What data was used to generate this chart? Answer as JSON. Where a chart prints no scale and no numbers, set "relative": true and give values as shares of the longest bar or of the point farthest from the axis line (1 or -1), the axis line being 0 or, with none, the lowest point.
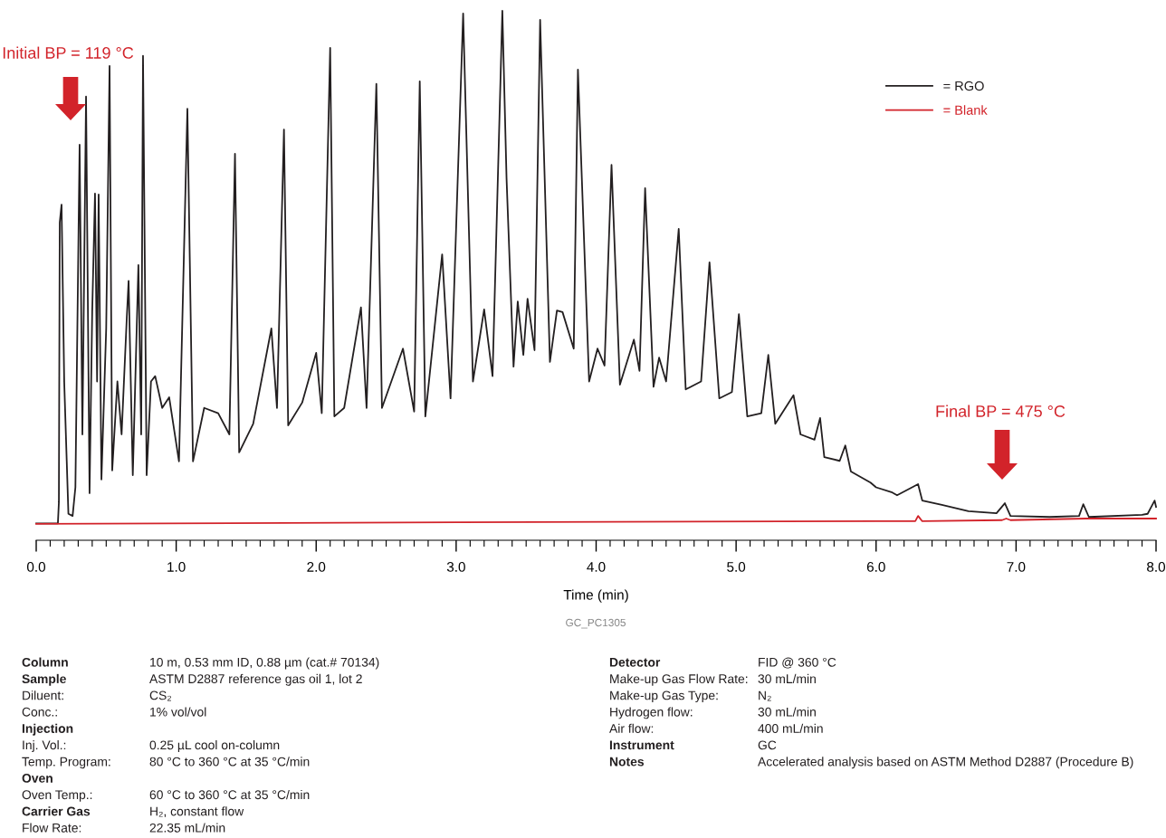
{
  "chart_data": {
    "type": "line",
    "relative": true,
    "xlabel": "Time (min)",
    "xlim": [
      0,
      8
    ],
    "xticks": [
      {
        "value": 0,
        "label": "0.0"
      },
      {
        "value": 1,
        "label": "1.0"
      },
      {
        "value": 2,
        "label": "2.0"
      },
      {
        "value": 3,
        "label": "3.0"
      },
      {
        "value": 4,
        "label": "4.0"
      },
      {
        "value": 5,
        "label": "5.0"
      },
      {
        "value": 6,
        "label": "6.0"
      },
      {
        "value": 7,
        "label": "7.0"
      },
      {
        "value": 8,
        "label": "8.0"
      }
    ],
    "legend": "top right",
    "grid": false,
    "marker": "none",
    "line_style": "solid",
    "series": [
      {
        "name": "= RGO",
        "color": "#231f20",
        "x": [
          0,
          0.155,
          0.162,
          0.168,
          0.181,
          0.2,
          0.23,
          0.26,
          0.28,
          0.31,
          0.33,
          0.356,
          0.381,
          0.4,
          0.42,
          0.435,
          0.446,
          0.466,
          0.5,
          0.524,
          0.543,
          0.58,
          0.61,
          0.647,
          0.66,
          0.69,
          0.73,
          0.75,
          0.763,
          0.789,
          0.82,
          0.85,
          0.9,
          0.95,
          1.02,
          1.08,
          1.12,
          1.2,
          1.3,
          1.38,
          1.42,
          1.45,
          1.55,
          1.68,
          1.72,
          1.77,
          1.8,
          1.9,
          2.0,
          2.04,
          2.1,
          2.13,
          2.2,
          2.32,
          2.36,
          2.43,
          2.47,
          2.62,
          2.7,
          2.74,
          2.78,
          2.9,
          2.96,
          3.05,
          3.12,
          3.2,
          3.26,
          3.33,
          3.36,
          3.41,
          3.44,
          3.48,
          3.51,
          3.56,
          3.6,
          3.67,
          3.72,
          3.76,
          3.84,
          3.87,
          3.95,
          4.01,
          4.06,
          4.11,
          4.17,
          4.27,
          4.31,
          4.35,
          4.41,
          4.45,
          4.5,
          4.59,
          4.64,
          4.75,
          4.81,
          4.88,
          4.97,
          5.02,
          5.08,
          5.18,
          5.23,
          5.28,
          5.41,
          5.46,
          5.56,
          5.6,
          5.63,
          5.74,
          5.78,
          5.82,
          5.96,
          6.0,
          6.11,
          6.15,
          6.3,
          6.33,
          6.47,
          6.66,
          6.86,
          6.92,
          6.96,
          7.24,
          7.45,
          7.48,
          7.52,
          7.9,
          7.94,
          7.99,
          8.0
        ],
        "values": [
          0.032,
          0.032,
          0.072,
          0.6,
          0.634,
          0.3,
          0.05,
          0.046,
          0.1,
          0.747,
          0.2,
          0.838,
          0.089,
          0.431,
          0.655,
          0.3,
          0.653,
          0.115,
          0.4,
          0.896,
          0.132,
          0.3,
          0.2,
          0.42,
          0.49,
          0.123,
          0.52,
          0.2,
          0.915,
          0.123,
          0.3,
          0.31,
          0.25,
          0.27,
          0.149,
          0.815,
          0.149,
          0.25,
          0.24,
          0.2,
          0.73,
          0.166,
          0.22,
          0.4,
          0.25,
          0.776,
          0.217,
          0.26,
          0.354,
          0.24,
          0.93,
          0.234,
          0.25,
          0.44,
          0.25,
          0.862,
          0.25,
          0.362,
          0.243,
          0.867,
          0.234,
          0.54,
          0.268,
          0.995,
          0.3,
          0.436,
          0.31,
          1.0,
          0.684,
          0.328,
          0.451,
          0.35,
          0.456,
          0.359,
          0.983,
          0.337,
          0.434,
          0.431,
          0.362,
          0.889,
          0.3,
          0.362,
          0.33,
          0.709,
          0.294,
          0.379,
          0.32,
          0.665,
          0.29,
          0.345,
          0.3,
          0.588,
          0.285,
          0.3,
          0.525,
          0.268,
          0.28,
          0.427,
          0.234,
          0.24,
          0.35,
          0.22,
          0.274,
          0.2,
          0.19,
          0.231,
          0.157,
          0.15,
          0.179,
          0.13,
          0.109,
          0.1,
          0.091,
          0.085,
          0.106,
          0.075,
          0.067,
          0.055,
          0.051,
          0.07,
          0.046,
          0.044,
          0.046,
          0.068,
          0.044,
          0.048,
          0.05,
          0.075,
          0.063
        ]
      },
      {
        "name": "= Blank",
        "color": "#d2232a",
        "x": [
          0,
          3.0,
          6.0,
          6.28,
          6.3,
          6.33,
          6.9,
          6.93,
          6.96,
          7.5,
          8.0
        ],
        "values": [
          0.031,
          0.034,
          0.036,
          0.036,
          0.046,
          0.036,
          0.038,
          0.041,
          0.038,
          0.041,
          0.041
        ]
      }
    ],
    "annotations": [
      "Initial BP = 119 °C",
      "Final BP = 475 °C",
      "GC_PC1305",
      "Column",
      "10 m, 0.53 mm ID, 0.88 µm (cat.# 70134)",
      "Sample",
      "ASTM D2887 reference gas oil 1, lot 2",
      "Diluent:",
      "CS₂",
      "Conc.:",
      "1% vol/vol",
      "Injection",
      "Inj. Vol.:",
      "0.25 µL cool on-column",
      "Temp. Program:",
      "80 °C to 360 °C at 35 °C/min",
      "Oven",
      "Oven Temp.:",
      "60 °C to 360 °C at 35 °C/min",
      "Carrier Gas",
      "H₂, constant flow",
      "Flow Rate:",
      "22.35 mL/min",
      "Detector",
      "FID @ 360 °C",
      "Make-up Gas Flow Rate:",
      "30 mL/min",
      "Make-up Gas Type:",
      "N₂",
      "Hydrogen flow:",
      "30 mL/min",
      "Air flow:",
      "400 mL/min",
      "Instrument",
      "GC",
      "Notes",
      "Accelerated analysis based on ASTM Method D2887 (Procedure B)"
    ]
  }
}
